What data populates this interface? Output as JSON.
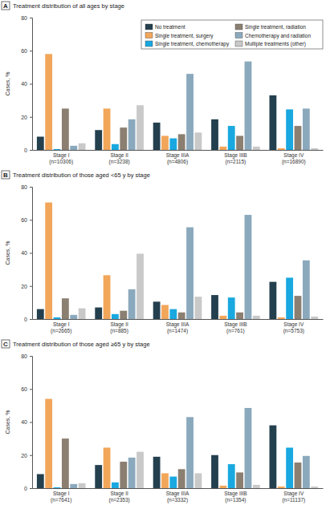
{
  "chart_data": [
    {
      "type": "bar",
      "annotations": [
        "A"
      ],
      "title": "Treatment distribution of all ages by stage",
      "y_label": "Cases, %",
      "categories": [
        "Stage I\n(n=10306)",
        "Stage II\n(n=3238)",
        "Stage IIIA\n(n=4806)",
        "Stage IIIB\n(n=2115)",
        "Stage IV\n(n=16890)"
      ],
      "ylim": [
        0,
        80
      ],
      "yticks": [
        0,
        20,
        40,
        60,
        80
      ],
      "legend": "upper right",
      "series": [
        {
          "name": "No treatment",
          "color": "#24404f",
          "values": [
            8,
            12,
            16.5,
            18.5,
            33
          ]
        },
        {
          "name": "Single treatment, surgery",
          "color": "#f2a65a",
          "values": [
            58,
            25,
            8.5,
            2,
            1
          ]
        },
        {
          "name": "Single treatment, chemotherapy",
          "color": "#19a8e0",
          "values": [
            0.5,
            3.5,
            7,
            14.5,
            24.5
          ]
        },
        {
          "name": "Single treatment, radiation",
          "color": "#8b7f72",
          "values": [
            25,
            13.5,
            9.5,
            8.5,
            14.5
          ]
        },
        {
          "name": "Chemotherapy and radiation",
          "color": "#8ba9bd",
          "values": [
            2.5,
            18.5,
            46,
            53.5,
            25
          ]
        },
        {
          "name": "Multiple treatments (other)",
          "color": "#c9c9c9",
          "values": [
            4,
            27,
            10.5,
            2,
            1
          ]
        }
      ]
    },
    {
      "type": "bar",
      "annotations": [
        "B"
      ],
      "title": "Treatment distribution of those aged <65 y by stage",
      "y_label": "Cases, %",
      "categories": [
        "Stage I\n(n=2665)",
        "Stage II\n(n=885)",
        "Stage IIIA\n(n=1474)",
        "Stage IIIB\n(n=761)",
        "Stage IV\n(n=5753)"
      ],
      "ylim": [
        0,
        80
      ],
      "yticks": [
        0,
        20,
        40,
        60,
        80
      ],
      "series": [
        {
          "color": "#24404f",
          "values": [
            6,
            7,
            10.5,
            14.5,
            22.5
          ]
        },
        {
          "color": "#f2a65a",
          "values": [
            70.5,
            26.5,
            8.5,
            2,
            1
          ]
        },
        {
          "color": "#19a8e0",
          "values": [
            1,
            3,
            6,
            13,
            25
          ]
        },
        {
          "color": "#8b7f72",
          "values": [
            12.5,
            5,
            4,
            4,
            14
          ]
        },
        {
          "color": "#8ba9bd",
          "values": [
            2.5,
            18,
            55.5,
            63,
            35.5
          ]
        },
        {
          "color": "#c9c9c9",
          "values": [
            6.5,
            39.5,
            13.5,
            2,
            1.5
          ]
        }
      ]
    },
    {
      "type": "bar",
      "annotations": [
        "C"
      ],
      "title": "Treatment distribution of those aged ≥65 y by stage",
      "y_label": "Cases, %",
      "categories": [
        "Stage I\n(n=7641)",
        "Stage II\n(n=2353)",
        "Stage IIIA\n(n=3332)",
        "Stage IIIB\n(n=1354)",
        "Stage IV\n(n=11137)"
      ],
      "ylim": [
        0,
        80
      ],
      "yticks": [
        0,
        20,
        40,
        60,
        80
      ],
      "series": [
        {
          "color": "#24404f",
          "values": [
            8.5,
            14,
            19,
            20,
            38
          ]
        },
        {
          "color": "#f2a65a",
          "values": [
            54,
            24.5,
            9,
            1.5,
            1
          ]
        },
        {
          "color": "#19a8e0",
          "values": [
            0.5,
            3.5,
            7,
            14.5,
            24.5
          ]
        },
        {
          "color": "#8b7f72",
          "values": [
            30,
            16,
            11.5,
            9.5,
            15.5
          ]
        },
        {
          "color": "#8ba9bd",
          "values": [
            2.5,
            18.5,
            43,
            48.5,
            19.5
          ]
        },
        {
          "color": "#c9c9c9",
          "values": [
            3,
            22,
            9,
            2,
            1
          ]
        }
      ]
    }
  ]
}
